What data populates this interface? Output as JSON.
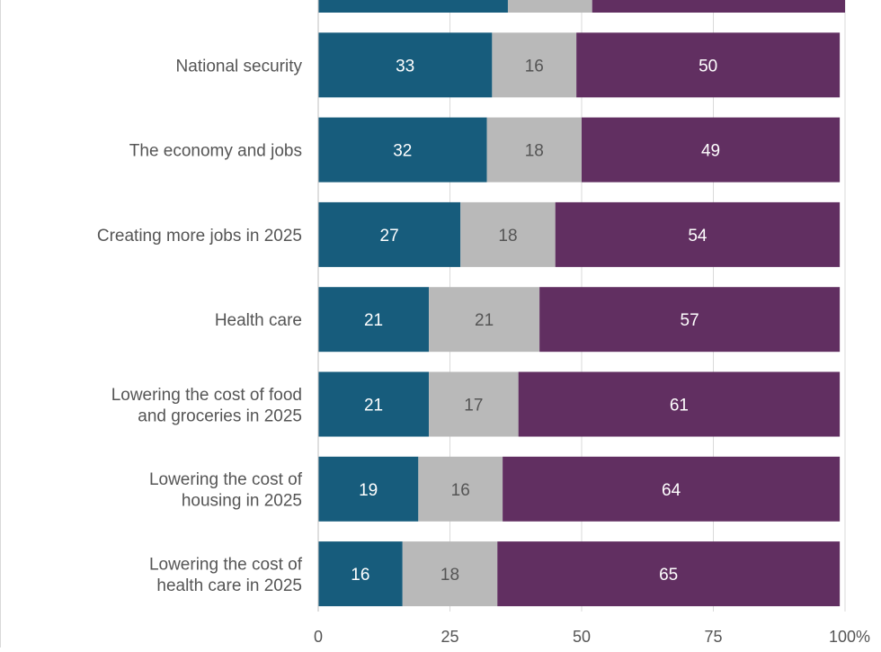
{
  "chart_data": {
    "type": "bar",
    "orientation": "horizontal",
    "stacked": true,
    "categories": [
      "",
      "National security",
      "The economy and jobs",
      "Creating more jobs  in 2025",
      "Health care",
      "Lowering the cost of food and groceries in 2025",
      "Lowering the cost of housing in 2025",
      "Lowering the cost of health care in 2025"
    ],
    "category_lines": [
      [],
      [
        "National security"
      ],
      [
        "The economy and jobs"
      ],
      [
        "Creating more jobs  in 2025"
      ],
      [
        "Health care"
      ],
      [
        "Lowering the cost of food",
        "and groceries in 2025"
      ],
      [
        "Lowering the cost of",
        "housing in 2025"
      ],
      [
        "Lowering the cost of",
        "health care in 2025"
      ]
    ],
    "series": [
      {
        "values": [
          36,
          33,
          32,
          27,
          21,
          21,
          19,
          16
        ]
      },
      {
        "values": [
          16,
          16,
          18,
          18,
          21,
          17,
          16,
          18
        ]
      },
      {
        "values": [
          48,
          50,
          49,
          54,
          57,
          61,
          64,
          65
        ]
      }
    ],
    "data_labels": [
      [
        null,
        33,
        32,
        27,
        21,
        21,
        19,
        16
      ],
      [
        null,
        16,
        18,
        18,
        21,
        17,
        16,
        18
      ],
      [
        null,
        50,
        49,
        54,
        57,
        61,
        64,
        65
      ]
    ],
    "colors": [
      "#175c7c",
      "#b9b9b9",
      "#612f61"
    ],
    "label_colors": [
      "#ffffff",
      "#555555",
      "#ffffff"
    ],
    "x_ticks": [
      "0",
      "25",
      "50",
      "75",
      "100%"
    ],
    "x_tick_values": [
      0,
      25,
      50,
      75,
      100
    ],
    "xlim": [
      0,
      100
    ],
    "grid": true
  }
}
